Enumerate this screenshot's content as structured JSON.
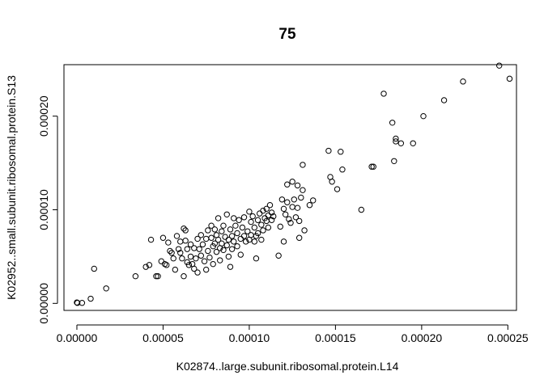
{
  "chart_data": {
    "type": "scatter",
    "title": "75",
    "xlabel": "K02874..large.subunit.ribosomal.protein.L14",
    "ylabel": "K02952..small.subunit.ribosomal.protein.S13",
    "xlim": [
      -7.5e-06,
      0.000255
    ],
    "ylim": [
      -7.5e-06,
      0.000255
    ],
    "xticks": [
      0,
      5e-05,
      0.0001,
      0.00015,
      0.0002,
      0.00025
    ],
    "xtick_labels": [
      "0.00000",
      "0.00005",
      "0.00010",
      "0.00015",
      "0.00020",
      "0.00025"
    ],
    "yticks": [
      0,
      0.0001,
      0.0002
    ],
    "ytick_labels": [
      "0.00000",
      "0.00010",
      "0.00020"
    ],
    "grid": false,
    "marker": "open-circle",
    "points": [
      [
        0.0,
        1e-06
      ],
      [
        3e-07,
        5e-07
      ],
      [
        3e-06,
        5e-07
      ],
      [
        8e-06,
        5e-06
      ],
      [
        1e-05,
        3.7e-05
      ],
      [
        1.7e-05,
        1.6e-05
      ],
      [
        3.4e-05,
        2.9e-05
      ],
      [
        4e-05,
        3.9e-05
      ],
      [
        4.2e-05,
        4.1e-05
      ],
      [
        4.3e-05,
        6.8e-05
      ],
      [
        4.6e-05,
        2.9e-05
      ],
      [
        4.7e-05,
        2.9e-05
      ],
      [
        4.9e-05,
        4.5e-05
      ],
      [
        5e-05,
        7e-05
      ],
      [
        5.1e-05,
        4.2e-05
      ],
      [
        5.2e-05,
        4.1e-05
      ],
      [
        5.3e-05,
        6.5e-05
      ],
      [
        5.4e-05,
        5.6e-05
      ],
      [
        5.5e-05,
        5.4e-05
      ],
      [
        5.6e-05,
        4.8e-05
      ],
      [
        5.7e-05,
        3.6e-05
      ],
      [
        5.8e-05,
        7.2e-05
      ],
      [
        5.9e-05,
        5.8e-05
      ],
      [
        6e-05,
        6.6e-05
      ],
      [
        6e-05,
        5.4e-05
      ],
      [
        6.1e-05,
        4.8e-05
      ],
      [
        6.2e-05,
        2.9e-05
      ],
      [
        6.2e-05,
        8e-05
      ],
      [
        6.3e-05,
        7.8e-05
      ],
      [
        6.3e-05,
        6.7e-05
      ],
      [
        6.4e-05,
        5.8e-05
      ],
      [
        6.4e-05,
        4.4e-05
      ],
      [
        6.5e-05,
        4.1e-05
      ],
      [
        6.6e-05,
        6.3e-05
      ],
      [
        6.6e-05,
        5e-05
      ],
      [
        6.7e-05,
        4.2e-05
      ],
      [
        6.8e-05,
        5.9e-05
      ],
      [
        6.8e-05,
        3.7e-05
      ],
      [
        6.9e-05,
        4.8e-05
      ],
      [
        7e-05,
        6.9e-05
      ],
      [
        7e-05,
        3.3e-05
      ],
      [
        7.1e-05,
        5.8e-05
      ],
      [
        7.2e-05,
        7.3e-05
      ],
      [
        7.2e-05,
        5.1e-05
      ],
      [
        7.3e-05,
        6.3e-05
      ],
      [
        7.4e-05,
        4.5e-05
      ],
      [
        7.5e-05,
        6.9e-05
      ],
      [
        7.5e-05,
        3.6e-05
      ],
      [
        7.6e-05,
        7.8e-05
      ],
      [
        7.6e-05,
        5.6e-05
      ],
      [
        7.7e-05,
        4.9e-05
      ],
      [
        7.8e-05,
        8.3e-05
      ],
      [
        7.8e-05,
        7e-05
      ],
      [
        7.9e-05,
        6.1e-05
      ],
      [
        7.9e-05,
        4.2e-05
      ],
      [
        8e-05,
        7.9e-05
      ],
      [
        8e-05,
        6.4e-05
      ],
      [
        8.1e-05,
        7.3e-05
      ],
      [
        8.1e-05,
        5.5e-05
      ],
      [
        8.2e-05,
        9.1e-05
      ],
      [
        8.2e-05,
        6.8e-05
      ],
      [
        8.3e-05,
        5.9e-05
      ],
      [
        8.3e-05,
        4.6e-05
      ],
      [
        8.4e-05,
        7.7e-05
      ],
      [
        8.4e-05,
        6.4e-05
      ],
      [
        8.5e-05,
        8.3e-05
      ],
      [
        8.5e-05,
        5.7e-05
      ],
      [
        8.6e-05,
        7.1e-05
      ],
      [
        8.7e-05,
        9.5e-05
      ],
      [
        8.7e-05,
        6.2e-05
      ],
      [
        8.8e-05,
        6.8e-05
      ],
      [
        8.8e-05,
        5e-05
      ],
      [
        8.9e-05,
        7.9e-05
      ],
      [
        8.9e-05,
        3.9e-05
      ],
      [
        9e-05,
        7.2e-05
      ],
      [
        9e-05,
        5.8e-05
      ],
      [
        9.1e-05,
        9.1e-05
      ],
      [
        9.1e-05,
        6.6e-05
      ],
      [
        9.2e-05,
        8.3e-05
      ],
      [
        9.3e-05,
        6.1e-05
      ],
      [
        9.3e-05,
        7.5e-05
      ],
      [
        9.4e-05,
        8.9e-05
      ],
      [
        9.5e-05,
        6.9e-05
      ],
      [
        9.5e-05,
        5.2e-05
      ],
      [
        9.6e-05,
        8.1e-05
      ],
      [
        9.7e-05,
        7.2e-05
      ],
      [
        9.7e-05,
        9.2e-05
      ],
      [
        9.8e-05,
        6.6e-05
      ],
      [
        9.9e-05,
        7.7e-05
      ],
      [
        0.0001,
        9.8e-05
      ],
      [
        0.0001,
        6.8e-05
      ],
      [
        0.000101,
        8.7e-05
      ],
      [
        0.000101,
        7.3e-05
      ],
      [
        0.000102,
        9.3e-05
      ],
      [
        0.000103,
        6.6e-05
      ],
      [
        0.000103,
        8.1e-05
      ],
      [
        0.000104,
        7.2e-05
      ],
      [
        0.000104,
        4.8e-05
      ],
      [
        0.000105,
        8.9e-05
      ],
      [
        0.000105,
        7.5e-05
      ],
      [
        0.000106,
        9.6e-05
      ],
      [
        0.000107,
        8.4e-05
      ],
      [
        0.000107,
        6.8e-05
      ],
      [
        0.000108,
        9.9e-05
      ],
      [
        0.000108,
        7.8e-05
      ],
      [
        0.000109,
        9.1e-05
      ],
      [
        0.00011,
        0.000101
      ],
      [
        0.00011,
        8.8e-05
      ],
      [
        0.000111,
        9.4e-05
      ],
      [
        0.000111,
        8.1e-05
      ],
      [
        0.000112,
        0.000105
      ],
      [
        0.000113,
        9.7e-05
      ],
      [
        0.000113,
        8.9e-05
      ],
      [
        0.000114,
        9.3e-05
      ],
      [
        0.000117,
        5.1e-05
      ],
      [
        0.000118,
        8.2e-05
      ],
      [
        0.000119,
        0.000111
      ],
      [
        0.00012,
        6.6e-05
      ],
      [
        0.00012,
        0.000101
      ],
      [
        0.000121,
        9.5e-05
      ],
      [
        0.000122,
        0.000108
      ],
      [
        0.000122,
        0.000127
      ],
      [
        0.000123,
        9e-05
      ],
      [
        0.000124,
        8.6e-05
      ],
      [
        0.000125,
        0.000103
      ],
      [
        0.000125,
        0.00013
      ],
      [
        0.000126,
        0.000111
      ],
      [
        0.000127,
        9.2e-05
      ],
      [
        0.000128,
        0.000126
      ],
      [
        0.000128,
        0.000102
      ],
      [
        0.000129,
        8.8e-05
      ],
      [
        0.000129,
        7e-05
      ],
      [
        0.00013,
        0.000113
      ],
      [
        0.000131,
        0.000148
      ],
      [
        0.000131,
        0.000121
      ],
      [
        0.000132,
        7.8e-05
      ],
      [
        0.000135,
        0.000105
      ],
      [
        0.000137,
        0.00011
      ],
      [
        0.000146,
        0.000163
      ],
      [
        0.000147,
        0.000135
      ],
      [
        0.000148,
        0.00013
      ],
      [
        0.000151,
        0.000122
      ],
      [
        0.000153,
        0.000162
      ],
      [
        0.000154,
        0.000143
      ],
      [
        0.000165,
        0.0001
      ],
      [
        0.000171,
        0.000146
      ],
      [
        0.000172,
        0.000146
      ],
      [
        0.000178,
        0.000224
      ],
      [
        0.000183,
        0.000193
      ],
      [
        0.000184,
        0.000152
      ],
      [
        0.000185,
        0.000176
      ],
      [
        0.000185,
        0.000173
      ],
      [
        0.000188,
        0.000171
      ],
      [
        0.000195,
        0.000171
      ],
      [
        0.000201,
        0.0002
      ],
      [
        0.000213,
        0.000217
      ],
      [
        0.000224,
        0.000237
      ],
      [
        0.000245,
        0.000254
      ],
      [
        0.000251,
        0.00024
      ]
    ]
  }
}
